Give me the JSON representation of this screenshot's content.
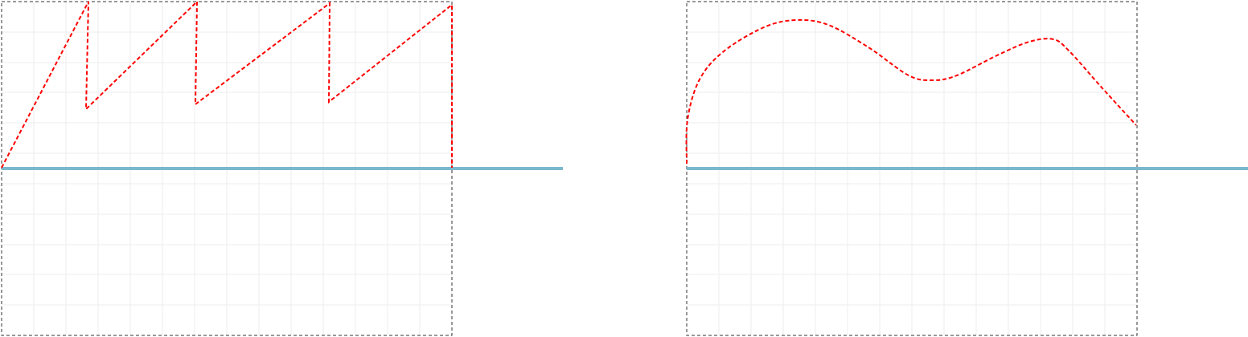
{
  "chart_data": [
    {
      "type": "line",
      "xlim": [
        0,
        560
      ],
      "ylim": [
        -208,
        208
      ],
      "xticks": [
        40,
        80,
        120,
        160,
        200,
        240,
        280,
        320,
        360,
        400,
        440,
        480,
        520
      ],
      "yticks": [
        -170,
        -132,
        -95,
        -57,
        -19,
        19,
        57,
        95,
        132,
        170
      ],
      "grid": true,
      "smooth": false,
      "series": [
        {
          "color": "#ff0000",
          "x": [
            0,
            108,
            105,
            243,
            241,
            408,
            407,
            560,
            560
          ],
          "values": [
            1,
            208,
            74,
            208,
            80,
            206,
            83,
            204,
            1
          ]
        }
      ]
    },
    {
      "type": "line",
      "xlim": [
        0,
        560
      ],
      "ylim": [
        -208,
        208
      ],
      "xticks": [
        40,
        80,
        120,
        160,
        200,
        240,
        280,
        320,
        360,
        400,
        440,
        480,
        520
      ],
      "yticks": [
        -170,
        -132,
        -95,
        -57,
        -19,
        19,
        57,
        95,
        132,
        170
      ],
      "grid": true,
      "smooth": true,
      "series": [
        {
          "color": "#ff0000",
          "x": [
            0,
            1,
            16,
            46,
            96,
            136,
            176,
            226,
            276,
            306,
            336,
            386,
            426,
            456,
            476,
            516,
            559
          ],
          "values": [
            6,
            61,
            111,
            146,
            176,
            185,
            179,
            151,
            116,
            110,
            116,
            141,
            158,
            161,
            146,
            101,
            54
          ]
        }
      ]
    }
  ]
}
